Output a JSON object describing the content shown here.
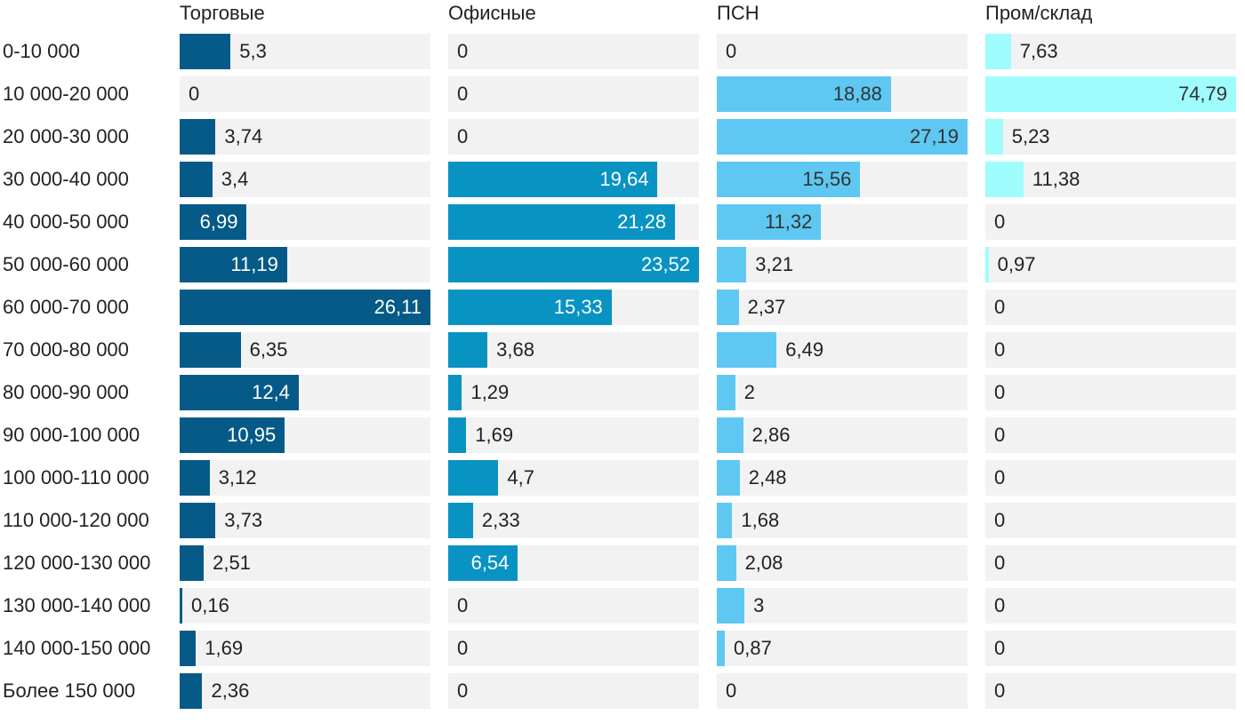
{
  "chart_data": {
    "type": "bar",
    "orientation": "horizontal",
    "layout": "small-multiples",
    "categories": [
      "0-10 000",
      "10 000-20 000",
      "20 000-30 000",
      "30 000-40 000",
      "40 000-50 000",
      "50 000-60 000",
      "60 000-70 000",
      "70 000-80 000",
      "80 000-90 000",
      "90 000-100 000",
      "100 000-110 000",
      "110 000-120 000",
      "120 000-130 000",
      "130 000-140 000",
      "140 000-150 000",
      "Более 150 000"
    ],
    "series": [
      {
        "name": "Торговые",
        "color": "#055a87",
        "max": 26.11,
        "values": [
          5.3,
          0,
          3.74,
          3.4,
          6.99,
          11.19,
          26.11,
          6.35,
          12.4,
          10.95,
          3.12,
          3.73,
          2.51,
          0.16,
          1.69,
          2.36
        ],
        "labels": [
          "5,3",
          "0",
          "3,74",
          "3,4",
          "6,99",
          "11,19",
          "26,11",
          "6,35",
          "12,4",
          "10,95",
          "3,12",
          "3,73",
          "2,51",
          "0,16",
          "1,69",
          "2,36"
        ]
      },
      {
        "name": "Офисные",
        "color": "#0993c3",
        "max": 23.52,
        "values": [
          0,
          0,
          0,
          19.64,
          21.28,
          23.52,
          15.33,
          3.68,
          1.29,
          1.69,
          4.7,
          2.33,
          6.54,
          0,
          0,
          0
        ],
        "labels": [
          "0",
          "0",
          "0",
          "19,64",
          "21,28",
          "23,52",
          "15,33",
          "3,68",
          "1,29",
          "1,69",
          "4,7",
          "2,33",
          "6,54",
          "0",
          "0",
          "0"
        ]
      },
      {
        "name": "ПСН",
        "color": "#5ec8f2",
        "max": 27.19,
        "values": [
          0,
          18.88,
          27.19,
          15.56,
          11.32,
          3.21,
          2.37,
          6.49,
          2,
          2.86,
          2.48,
          1.68,
          2.08,
          3,
          0.87,
          0
        ],
        "labels": [
          "0",
          "18,88",
          "27,19",
          "15,56",
          "11,32",
          "3,21",
          "2,37",
          "6,49",
          "2",
          "2,86",
          "2,48",
          "1,68",
          "2,08",
          "3",
          "0,87",
          "0"
        ]
      },
      {
        "name": "Пром/склад",
        "color": "#9ffcfd",
        "max": 74.79,
        "values": [
          7.63,
          74.79,
          5.23,
          11.38,
          0,
          0.97,
          0,
          0,
          0,
          0,
          0,
          0,
          0,
          0,
          0,
          0
        ],
        "labels": [
          "7,63",
          "74,79",
          "5,23",
          "11,38",
          "0",
          "0,97",
          "0",
          "0",
          "0",
          "0",
          "0",
          "0",
          "0",
          "0",
          "0",
          "0"
        ]
      }
    ]
  }
}
